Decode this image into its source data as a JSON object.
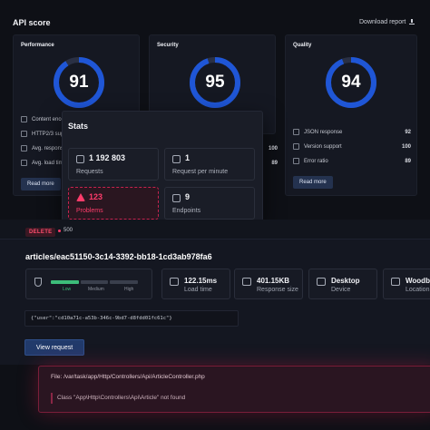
{
  "header": {
    "title": "API score",
    "download_label": "Download report"
  },
  "scores": [
    {
      "label": "Performance",
      "value": "91",
      "fraction": 0.91
    },
    {
      "label": "Security",
      "value": "95",
      "fraction": 0.95
    },
    {
      "label": "Quality",
      "value": "94",
      "fraction": 0.94
    }
  ],
  "performance_metrics": [
    {
      "label": "Content enco"
    },
    {
      "label": "HTTP2/3 sup"
    },
    {
      "label": "Avg. respons",
      "value": "100"
    },
    {
      "label": "Avg. load tim",
      "value": "89"
    }
  ],
  "quality_metrics": [
    {
      "label": "JSON response",
      "value": "92"
    },
    {
      "label": "Version support",
      "value": "100"
    },
    {
      "label": "Error ratio",
      "value": "89"
    }
  ],
  "read_more_label": "Read more",
  "stats": {
    "title": "Stats",
    "items": [
      {
        "value": "1 192 803",
        "label": "Requests"
      },
      {
        "value": "1",
        "label": "Request per minute"
      },
      {
        "value": "123",
        "label": "Problems"
      },
      {
        "value": "9",
        "label": "Endpoints"
      }
    ]
  },
  "request": {
    "method": "DELETE",
    "status": "500",
    "path": "articles/eac51150-3c14-3392-bb18-1cd3ab978fa6",
    "levels": [
      "Low",
      "Medium",
      "High"
    ],
    "level_value": 1,
    "load_time": {
      "value": "122.15ms",
      "label": "Load time"
    },
    "response_size": {
      "value": "401.15KB",
      "label": "Response size"
    },
    "device": {
      "value": "Desktop",
      "label": "Device"
    },
    "location": {
      "value": "Woodb",
      "label": "Location"
    },
    "json": "{\"user\":\"cd10a71c-a53b-346c-9bd7-d8fdd01fc61c\"}",
    "view_label": "View request"
  },
  "error": {
    "file": "File: /var/task/app/Http/Controllers/Api/ArticleController.php",
    "message": "Class \"App\\Http\\Controllers\\Api\\Article\" not found"
  },
  "colors": {
    "gauge": "#1f56d6",
    "gauge_track": "#2a3044",
    "problem": "#ff3c6b",
    "level": "#3dbd7a"
  }
}
